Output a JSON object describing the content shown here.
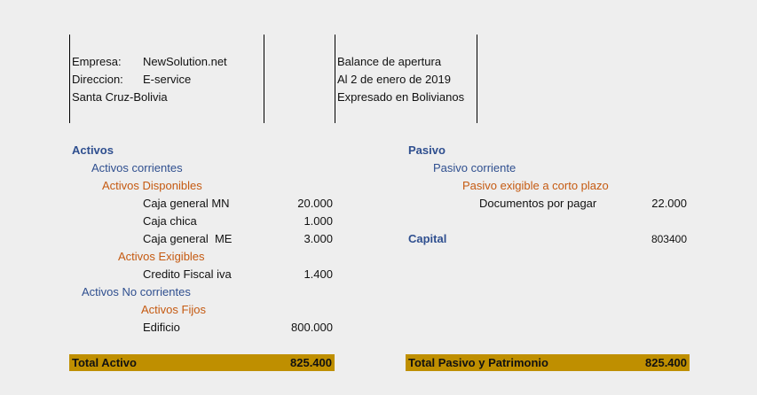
{
  "header": {
    "company_label": "Empresa:",
    "company_value": "NewSolution.net",
    "address_label": "Direccion:",
    "address_value": "E-service",
    "city": "Santa Cruz-Bolivia",
    "report_title": "Balance de apertura",
    "report_date": "Al 2 de enero de 2019",
    "report_currency": "Expresado en Bolivianos"
  },
  "assets": {
    "title": "Activos",
    "current_title": "Activos corrientes",
    "available_title": "Activos Disponibles",
    "available_items": [
      {
        "label": "Caja general MN",
        "value": "20.000"
      },
      {
        "label": "Caja chica",
        "value": "1.000"
      },
      {
        "label": "Caja general  ME",
        "value": "3.000"
      }
    ],
    "receivable_title": "Activos Exigibles",
    "receivable_items": [
      {
        "label": "Credito Fiscal iva",
        "value": "1.400"
      }
    ],
    "noncurrent_title": "Activos No corrientes",
    "fixed_title": "Activos Fijos",
    "fixed_items": [
      {
        "label": "Edificio",
        "value": "800.000"
      }
    ],
    "total_label": "Total Activo",
    "total_value": "825.400"
  },
  "liabilities": {
    "title": "Pasivo",
    "current_title": "Pasivo corriente",
    "short_term_title": "Pasivo exigible a corto plazo",
    "items": [
      {
        "label": "Documentos por pagar",
        "value": "22.000"
      }
    ],
    "capital_label": "Capital",
    "capital_value": "803400",
    "total_label": "Total Pasivo y Patrimonio",
    "total_value": "825.400"
  }
}
